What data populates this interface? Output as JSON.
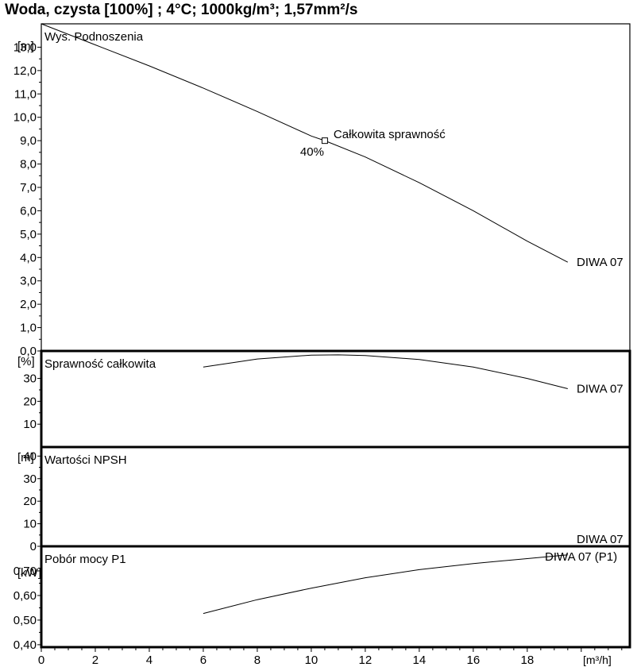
{
  "title": "Woda, czysta [100%] ; 4°C; 1000kg/m³; 1,57mm²/s",
  "colors": {
    "line": "#000000",
    "background": "#ffffff"
  },
  "chart_data": {
    "x_axis": {
      "unit": "[m³/h]",
      "range": [
        0,
        21.8
      ],
      "ticks": [
        0,
        2,
        4,
        6,
        8,
        10,
        12,
        14,
        16,
        18
      ],
      "tick_labels": [
        "0",
        "2",
        "4",
        "6",
        "8",
        "10",
        "12",
        "14",
        "16",
        "18"
      ],
      "minor_step": 0.5
    },
    "panels": [
      {
        "id": "head",
        "type": "line",
        "label": "Wys. Podnoszenia",
        "unit": "[m]",
        "ylim": [
          0,
          14
        ],
        "yticks": [
          0,
          1,
          2,
          3,
          4,
          5,
          6,
          7,
          8,
          9,
          10,
          11,
          12,
          13
        ],
        "ytick_labels": [
          "0,0",
          "1,0",
          "2,0",
          "3,0",
          "4,0",
          "5,0",
          "6,0",
          "7,0",
          "8,0",
          "9,0",
          "10,0",
          "11,0",
          "12,0",
          "13,0"
        ],
        "series": [
          {
            "name": "DIWA 07",
            "x": [
              0,
              2,
              4,
              6,
              8,
              10,
              10.5,
              12,
              14,
              16,
              18,
              19.5
            ],
            "y": [
              14.0,
              13.1,
              12.2,
              11.25,
              10.25,
              9.2,
              9.0,
              8.3,
              7.2,
              6.0,
              4.7,
              3.8
            ]
          }
        ],
        "annotations": [
          {
            "x": 10.5,
            "y": 9.0,
            "text": "Całkowita sprawność",
            "value_text": "40%",
            "marker": "square"
          }
        ]
      },
      {
        "id": "efficiency",
        "type": "line",
        "label": "Sprawność całkowita",
        "unit": "[%]",
        "ylim": [
          0,
          42
        ],
        "yticks": [
          10,
          20,
          30
        ],
        "ytick_labels": [
          "10",
          "20",
          "30"
        ],
        "series": [
          {
            "name": "DIWA 07",
            "x": [
              6,
              8,
              10,
              11,
              12,
              14,
              16,
              18,
              19.5
            ],
            "y": [
              35.0,
              38.5,
              40.2,
              40.3,
              40.0,
              38.3,
              35.0,
              30.0,
              25.5
            ]
          }
        ]
      },
      {
        "id": "npsh",
        "type": "line",
        "label": "Wartości NPSH",
        "unit": "[m]",
        "ylim": [
          0,
          44
        ],
        "yticks": [
          0,
          10,
          20,
          30,
          40
        ],
        "ytick_labels": [
          "0",
          "10",
          "20",
          "30",
          "40"
        ],
        "series": [
          {
            "name": "DIWA 07",
            "x": [],
            "y": []
          }
        ]
      },
      {
        "id": "power",
        "type": "line",
        "label": "Pobór mocy P1",
        "unit": "[kW]",
        "ylim": [
          0.39,
          0.8
        ],
        "yticks": [
          0.4,
          0.5,
          0.6,
          0.7
        ],
        "ytick_labels": [
          "0,40",
          "0,50",
          "0,60",
          "0,70"
        ],
        "series": [
          {
            "name": "DIWA 07 (P1)",
            "x": [
              6,
              8,
              10,
              12,
              14,
              16,
              18,
              19.5
            ],
            "y": [
              0.527,
              0.583,
              0.63,
              0.672,
              0.705,
              0.73,
              0.75,
              0.765
            ]
          }
        ]
      }
    ]
  }
}
